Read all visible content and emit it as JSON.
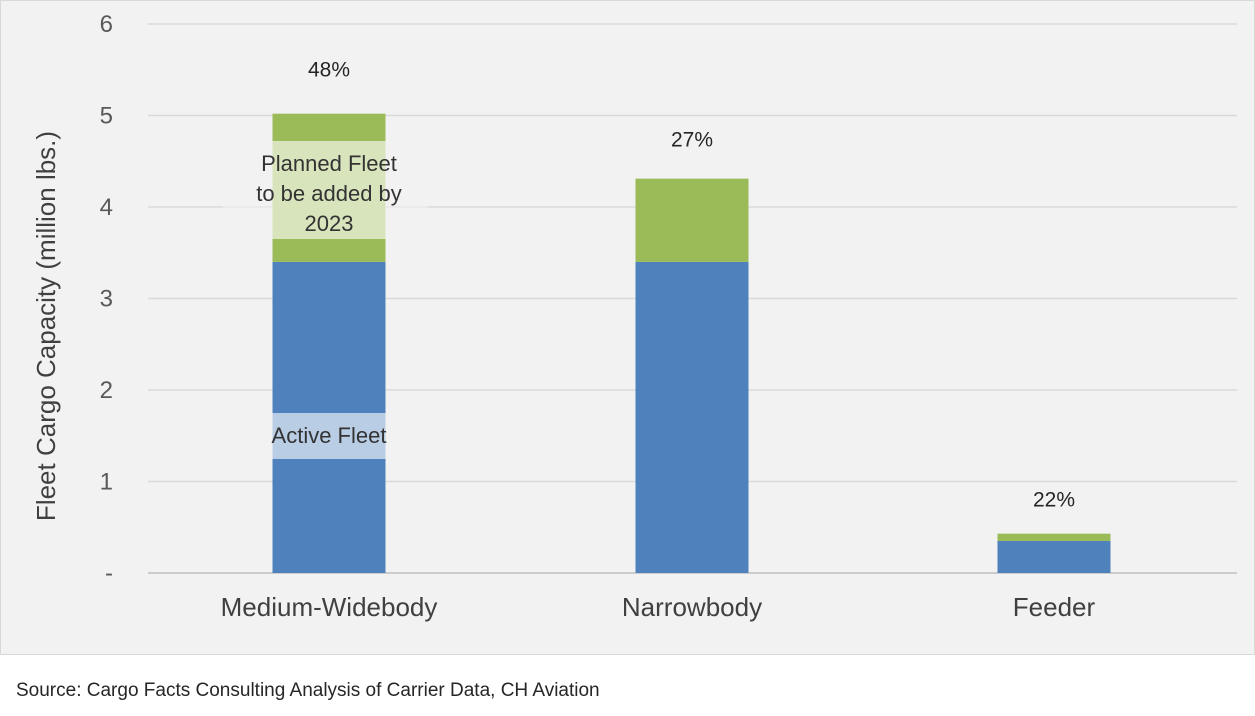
{
  "chart_data": {
    "type": "bar",
    "stacked": true,
    "categories": [
      "Medium-Widebody",
      "Narrowbody",
      "Feeder"
    ],
    "series": [
      {
        "name": "Active Fleet",
        "values": [
          3.4,
          3.4,
          0.35
        ],
        "color": "#4f81bd"
      },
      {
        "name": "Planned Fleet to be added by 2023",
        "values": [
          1.62,
          0.91,
          0.08
        ],
        "color": "#9bbb59"
      }
    ],
    "growth_labels": [
      "48%",
      "27%",
      "22%"
    ],
    "ylabel": "Fleet Cargo Capacity (million lbs.)",
    "xlabel": "",
    "ylim": [
      0,
      6
    ],
    "y_ticks": [
      {
        "value": 0,
        "label": "-"
      },
      {
        "value": 1,
        "label": "1"
      },
      {
        "value": 2,
        "label": "2"
      },
      {
        "value": 3,
        "label": "3"
      },
      {
        "value": 4,
        "label": "4"
      },
      {
        "value": 5,
        "label": "5"
      },
      {
        "value": 6,
        "label": "6"
      }
    ],
    "annotations": {
      "active": "Active Fleet",
      "planned_lines": [
        "Planned Fleet",
        "to be added by",
        "2023"
      ]
    },
    "grid": true,
    "legend": "inline annotations"
  },
  "source": "Source: Cargo Facts Consulting Analysis of Carrier Data, CH Aviation"
}
